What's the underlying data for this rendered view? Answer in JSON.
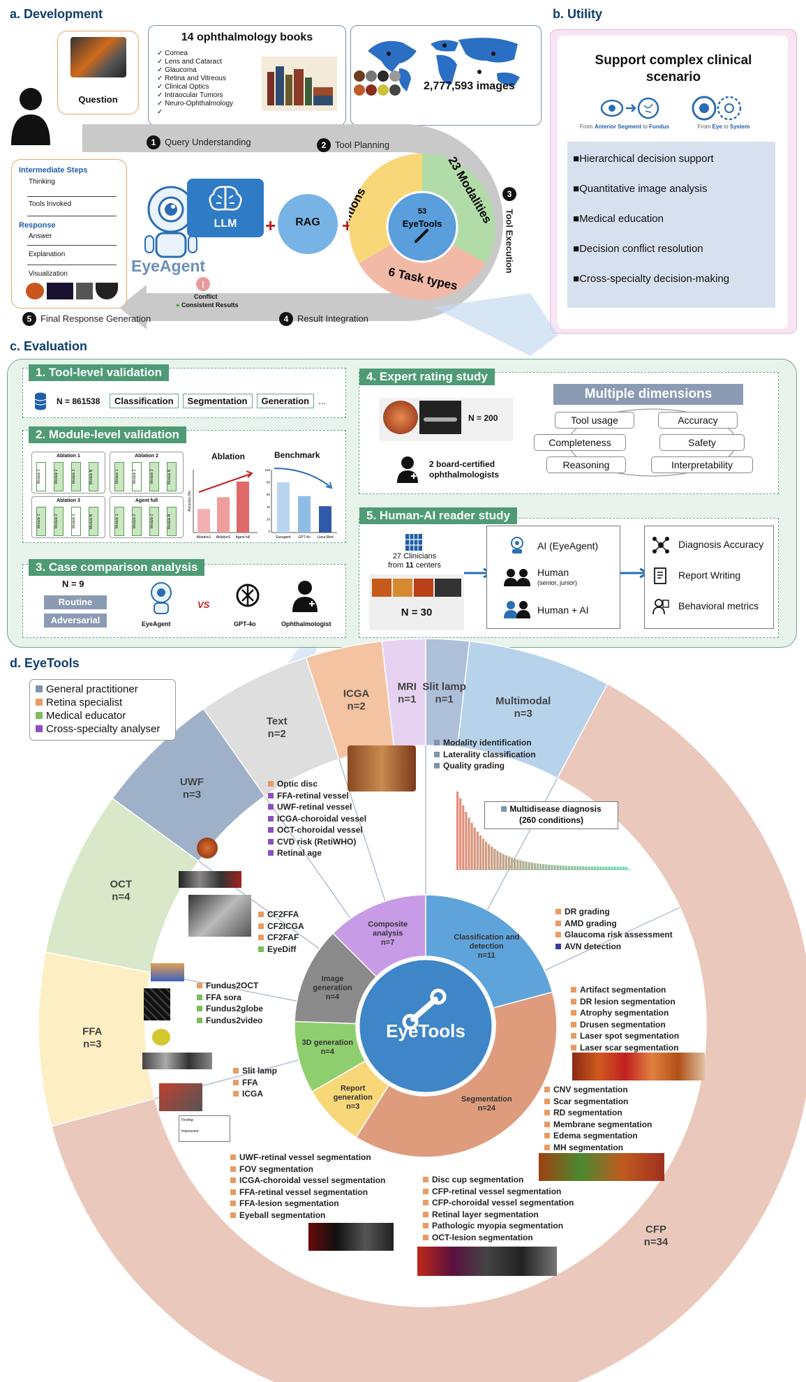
{
  "panel_a": {
    "title": "a. Development",
    "question_label": "Question",
    "books_title": "14 ophthalmology books",
    "books": [
      "Cornea",
      "Lens and Cataract",
      "Glaucoma",
      "Retina and Vitreous",
      "Clinical Optics",
      "Intraocular Tumors",
      "Neuro-Ophthalmology"
    ],
    "images_count": "2,777,593 images",
    "steps": {
      "s1": {
        "num": "1",
        "label": "Query Understanding"
      },
      "s2": {
        "num": "2",
        "label": "Tool Planning"
      },
      "s3": {
        "num": "3",
        "label": "Tool Execution"
      },
      "s4": {
        "num": "4",
        "label": "Result Integration"
      },
      "s5": {
        "num": "5",
        "label": "Final Response Generation"
      }
    },
    "intermediate_title": "Intermediate Steps",
    "intermediate_items": [
      "Thinking",
      "Tools Invoked"
    ],
    "response_title": "Response",
    "response_items": [
      "Answer",
      "Explanation",
      "Visualization"
    ],
    "agent_name": "EyeAgent",
    "llm": "LLM",
    "plus": "+",
    "rag": "RAG",
    "conflict": "Conflict",
    "consistent": "Consistent Results",
    "circle": {
      "conditions": "260 Conditions",
      "modalities": "23 Modalities",
      "tasks": "6 Task types",
      "center_num": "53",
      "center_label": "EyeTools"
    }
  },
  "panel_b": {
    "title": "b. Utility",
    "heading": "Support complex clinical scenario",
    "caption1_a": "From ",
    "caption1_b": "Anterior Segment",
    "caption1_c": " to ",
    "caption1_d": "Fundus",
    "caption2_a": "From ",
    "caption2_b": "Eye",
    "caption2_c": " to ",
    "caption2_d": "System",
    "items": [
      "Hierarchical decision support",
      "Quantitative image analysis",
      "Medical education",
      "Decision conflict resolution",
      "Cross-specialty decision-making"
    ]
  },
  "panel_c": {
    "title": "c. Evaluation",
    "tool_level": {
      "title": "1. Tool-level validation",
      "n": "N = 861538",
      "tags": [
        "Classification",
        "Segmentation",
        "Generation"
      ],
      "more": "..."
    },
    "module_level": {
      "title": "2. Module-level validation",
      "ablations": [
        "Ablation 1",
        "Ablation 2",
        "Ablation 3",
        "Agent full"
      ],
      "module_labels": [
        "Module 1",
        "Module 2",
        "Module 3",
        "Module N"
      ],
      "ablation_chart": {
        "title": "Ablation",
        "ylabel": "Accuracy (%)",
        "categories": [
          "Ablation1",
          "Ablation2",
          "Agent full"
        ],
        "values": [
          30,
          45,
          65
        ]
      },
      "benchmark_chart": {
        "title": "Benchmark",
        "categories": [
          "Eyeagent",
          "GPT-4o",
          "Llava-Med"
        ],
        "values": [
          80,
          58,
          42
        ],
        "ticks": [
          "100",
          "80",
          "60",
          "40",
          "20",
          "0"
        ]
      }
    },
    "case_comparison": {
      "title": "3. Case comparison analysis",
      "n": "N = 9",
      "buttons": [
        "Routine",
        "Adversarial"
      ],
      "eyeagent": "EyeAgent",
      "vs": "VS",
      "gpt": "GPT-4o",
      "oph": "Ophthalmologist"
    },
    "expert_rating": {
      "title": "4. Expert rating study",
      "n": "N = 200",
      "raters": "2 board-certified ophthalmologists",
      "dimensions_title": "Multiple dimensions",
      "dimensions": [
        "Tool usage",
        "Accuracy",
        "Completeness",
        "Safety",
        "Reasoning",
        "Interpretability"
      ]
    },
    "reader_study": {
      "title": "5. Human-AI reader study",
      "clinicians_a": "27 Clinicians",
      "clinicians_b": "from ",
      "clinicians_c": "11",
      "clinicians_d": " centers",
      "n": "N = 30",
      "arms": [
        "AI (EyeAgent)",
        "Human",
        "Human + AI"
      ],
      "human_sub": "(senior, junior)",
      "metrics": [
        "Diagnosis Accuracy",
        "Report Writing",
        "Behavioral metrics"
      ]
    }
  },
  "panel_d": {
    "title": "d. EyeTools",
    "legend": [
      {
        "label": "General practitioner",
        "color": "#7f94ad"
      },
      {
        "label": "Retina specialist",
        "color": "#e89b62"
      },
      {
        "label": "Medical educator",
        "color": "#7dbb5c"
      },
      {
        "label": "Cross-specialty analyser",
        "color": "#8c4fc2"
      }
    ],
    "outer_ring": [
      {
        "name": "FFA",
        "n": "n=3"
      },
      {
        "name": "OCT",
        "n": "n=4"
      },
      {
        "name": "UWF",
        "n": "n=3"
      },
      {
        "name": "Text",
        "n": "n=2"
      },
      {
        "name": "ICGA",
        "n": "n=2"
      },
      {
        "name": "MRI",
        "n": "n=1"
      },
      {
        "name": "Slit lamp",
        "n": "n=1"
      },
      {
        "name": "Multimodal",
        "n": "n=3"
      },
      {
        "name": "CFP",
        "n": "n=34"
      }
    ],
    "inner_ring": [
      {
        "name": "Composite analysis",
        "n": "n=7"
      },
      {
        "name": "Classification and detection",
        "n": "n=11"
      },
      {
        "name": "Segmentation",
        "n": "n=24"
      },
      {
        "name": "Report generation",
        "n": "n=3"
      },
      {
        "name": "3D generation",
        "n": "n=4"
      },
      {
        "name": "Image generation",
        "n": "n=4"
      }
    ],
    "center": "EyeTools",
    "composite_tools": [
      {
        "t": "Optic disc",
        "c": "#e89b62"
      },
      {
        "t": "FFA-retinal vessel",
        "c": "#8c4fc2"
      },
      {
        "t": "UWF-retinal vessel",
        "c": "#8c4fc2"
      },
      {
        "t": "ICGA-choroidal vessel",
        "c": "#8c4fc2"
      },
      {
        "t": "OCT-choroidal vessel",
        "c": "#8c4fc2"
      },
      {
        "t": "CVD risk (RetiWHO)",
        "c": "#8c4fc2"
      },
      {
        "t": "Retinal age",
        "c": "#8c4fc2"
      }
    ],
    "image_gen_tools": [
      {
        "t": "CF2FFA",
        "c": "#e89b62"
      },
      {
        "t": "CF2ICGA",
        "c": "#e89b62"
      },
      {
        "t": "CF2FAF",
        "c": "#e89b62"
      },
      {
        "t": "EyeDiff",
        "c": "#7dbb5c"
      }
    ],
    "gen3d_tools": [
      {
        "t": "Fundus2OCT",
        "c": "#e89b62"
      },
      {
        "t": "FFA sora",
        "c": "#7dbb5c"
      },
      {
        "t": "Fundus2globe",
        "c": "#7dbb5c"
      },
      {
        "t": "Fundus2video",
        "c": "#7dbb5c"
      }
    ],
    "report_tools": [
      {
        "t": "Slit lamp",
        "c": "#e89b62"
      },
      {
        "t": "FFA",
        "c": "#e89b62"
      },
      {
        "t": "ICGA",
        "c": "#e89b62"
      }
    ],
    "class_tools_top": [
      {
        "t": "Modality identification",
        "c": "#7f94ad"
      },
      {
        "t": "Laterality classification",
        "c": "#7f94ad"
      },
      {
        "t": "Quality grading",
        "c": "#7f94ad"
      }
    ],
    "multidisease": "Multidisease diagnosis",
    "multidisease_sub": "(260 conditions)",
    "class_tools_bottom": [
      {
        "t": "DR grading",
        "c": "#e89b62"
      },
      {
        "t": "AMD grading",
        "c": "#e89b62"
      },
      {
        "t": "Glaucoma risk assessment",
        "c": "#e89b62"
      },
      {
        "t": "AVN detection",
        "c": "#3a3aa0"
      }
    ],
    "seg_tools_a": [
      {
        "t": "Artifact segmentation",
        "c": "#e89b62"
      },
      {
        "t": "DR lesion segmentation",
        "c": "#e89b62"
      },
      {
        "t": "Atrophy segmentation",
        "c": "#e89b62"
      },
      {
        "t": "Drusen segmentation",
        "c": "#e89b62"
      },
      {
        "t": "Laser spot segmentation",
        "c": "#e89b62"
      },
      {
        "t": "Laser scar segmentation",
        "c": "#e89b62"
      }
    ],
    "seg_tools_b": [
      {
        "t": "CNV segmentation",
        "c": "#e89b62"
      },
      {
        "t": "Scar segmentation",
        "c": "#e89b62"
      },
      {
        "t": "RD segmentation",
        "c": "#e89b62"
      },
      {
        "t": "Membrane segmentation",
        "c": "#e89b62"
      },
      {
        "t": "Edema segmentation",
        "c": "#e89b62"
      },
      {
        "t": "MH segmentation",
        "c": "#e89b62"
      }
    ],
    "seg_tools_c": [
      {
        "t": "Disc cup segmentation",
        "c": "#e89b62"
      },
      {
        "t": "CFP-retinal vessel segmentation",
        "c": "#e89b62"
      },
      {
        "t": "CFP-choroidal vessel segmentation",
        "c": "#e89b62"
      },
      {
        "t": "Retinal layer segmentation",
        "c": "#e89b62"
      },
      {
        "t": "Pathologic myopia segmentation",
        "c": "#e89b62"
      },
      {
        "t": "OCT-lesion segmentation",
        "c": "#e89b62"
      }
    ],
    "seg_tools_d": [
      {
        "t": "UWF-retinal vessel segmentation",
        "c": "#e89b62"
      },
      {
        "t": "FOV segmentation",
        "c": "#e89b62"
      },
      {
        "t": "ICGA-choroidal vessel segmentation",
        "c": "#e89b62"
      },
      {
        "t": "FFA-retinal vessel segmentation",
        "c": "#e89b62"
      },
      {
        "t": "FFA-lesion segmentation",
        "c": "#e89b62"
      },
      {
        "t": "Eyeball segmentation",
        "c": "#e89b62"
      }
    ],
    "report_form": {
      "finding": "Finding:",
      "impression": "Impression:"
    }
  },
  "colors": {
    "navy": "#0f3d6e",
    "eval_green": "#4e9b75",
    "cfp_ring": "#eac8bb",
    "utility_pink": "#f8e5f3"
  }
}
